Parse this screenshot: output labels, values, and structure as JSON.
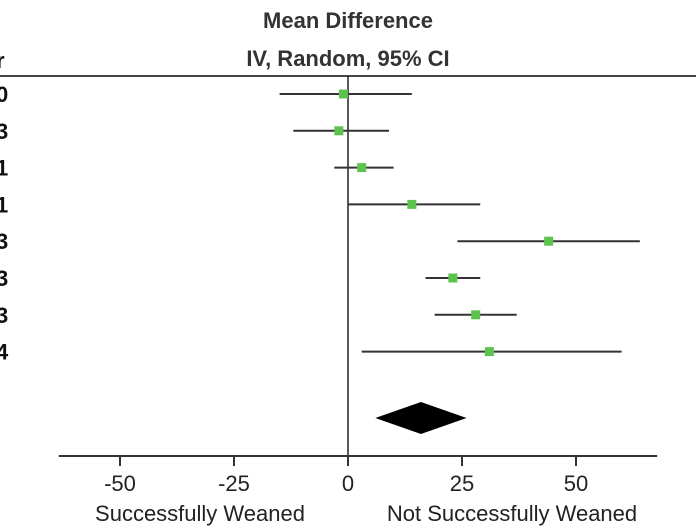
{
  "chart_data": {
    "type": "forest",
    "title": "Mean Difference",
    "subtitle": "IV, Random, 95% CI",
    "studies": [
      {
        "edge_char": "0",
        "estimate": -1,
        "ci": [
          -15,
          14
        ]
      },
      {
        "edge_char": "3",
        "estimate": -2,
        "ci": [
          -12,
          9
        ]
      },
      {
        "edge_char": "1",
        "estimate": 3,
        "ci": [
          -3,
          10
        ]
      },
      {
        "edge_char": "1",
        "estimate": 14,
        "ci": [
          0,
          29
        ]
      },
      {
        "edge_char": "3",
        "estimate": 44,
        "ci": [
          24,
          64
        ]
      },
      {
        "edge_char": "3",
        "estimate": 23,
        "ci": [
          17,
          29
        ]
      },
      {
        "edge_char": "3",
        "estimate": 28,
        "ci": [
          19,
          37
        ]
      },
      {
        "edge_char": "4",
        "estimate": 31,
        "ci": [
          3,
          60
        ]
      }
    ],
    "pooled": {
      "estimate": 16,
      "ci": [
        6,
        26
      ]
    },
    "header_edge_char": "r",
    "x_ticks": [
      -50,
      -25,
      0,
      25,
      50
    ],
    "xlim": [
      -70,
      70
    ],
    "xlabel_left": "Successfully Weaned",
    "xlabel_right": "Not Successfully Weaned",
    "marker_color": "#5cc44c",
    "line_color": "#333333"
  }
}
